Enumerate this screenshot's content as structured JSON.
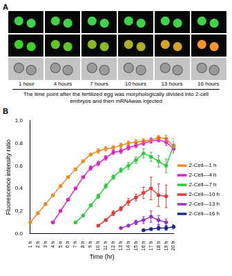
{
  "panel_a": {
    "label": "A",
    "times": [
      "1 hour",
      "4 hours",
      "7 hours",
      "10 hours",
      "13 hours",
      "16 hours"
    ],
    "caption": "The time point after the fertilized egg was morphologically divided into 2-cell embryos and then mRNAwas injected"
  },
  "chart_data": {
    "type": "line",
    "panel_label": "B",
    "x_label": "Time (hr)",
    "y_label": "Fluorescence intensity ratio",
    "categories": [
      "1 h",
      "2 h",
      "3 h",
      "4 h",
      "5 h",
      "6 h",
      "7 h",
      "8 h",
      "9 h",
      "10 h",
      "11 h",
      "12 h",
      "13 h",
      "14 h",
      "15 h",
      "16 h",
      "17 h",
      "18 h",
      "19 h",
      "20 h"
    ],
    "ylim": [
      0,
      1
    ],
    "yticks": [
      {
        "value": 0,
        "label": "0.0"
      },
      0.2,
      0.4,
      0.6,
      0.8,
      {
        "value": 1,
        "label": "1.0"
      }
    ],
    "grid": false,
    "legend": "right",
    "marker": "circle",
    "series": [
      {
        "name": "2-Cell—1 h",
        "color": "#f08a24",
        "values": [
          0.1,
          0.18,
          0.26,
          0.34,
          0.42,
          0.5,
          0.57,
          0.64,
          0.7,
          0.73,
          0.75,
          0.76,
          0.78,
          0.8,
          0.81,
          0.82,
          0.83,
          0.85,
          0.84,
          0.77
        ],
        "errors": [
          0.01,
          0.01,
          0.01,
          0.01,
          0.01,
          0.01,
          0.01,
          0.01,
          0.01,
          0.02,
          0.02,
          0.02,
          0.02,
          0.02,
          0.02,
          0.02,
          0.02,
          0.02,
          0.03,
          0.04
        ]
      },
      {
        "name": "2-Cell—4 h",
        "color": "#e020c8",
        "values": [
          null,
          null,
          null,
          0.1,
          0.2,
          0.3,
          0.4,
          0.5,
          0.58,
          0.62,
          0.67,
          0.72,
          0.73,
          0.76,
          0.78,
          0.8,
          0.82,
          0.83,
          0.81,
          0.75
        ],
        "errors": [
          null,
          null,
          null,
          0.01,
          0.01,
          0.01,
          0.01,
          0.01,
          0.02,
          0.02,
          0.02,
          0.02,
          0.02,
          0.02,
          0.02,
          0.02,
          0.02,
          0.02,
          0.03,
          0.04
        ]
      },
      {
        "name": "2-Cell—7 h",
        "color": "#2ecc40",
        "values": [
          null,
          null,
          null,
          null,
          null,
          null,
          0.1,
          0.16,
          0.25,
          0.33,
          0.42,
          0.5,
          0.56,
          0.6,
          0.65,
          0.71,
          0.68,
          0.64,
          0.6,
          0.78
        ],
        "errors": [
          null,
          null,
          null,
          null,
          null,
          null,
          0.01,
          0.01,
          0.01,
          0.02,
          0.02,
          0.02,
          0.02,
          0.03,
          0.03,
          0.04,
          0.04,
          0.05,
          0.06,
          0.06
        ]
      },
      {
        "name": "2-Cell—10 h",
        "color": "#e03a3a",
        "values": [
          null,
          null,
          null,
          null,
          null,
          null,
          null,
          null,
          null,
          0.07,
          0.12,
          0.18,
          0.22,
          0.28,
          0.32,
          0.36,
          0.4,
          0.34,
          0.33,
          null
        ],
        "errors": [
          null,
          null,
          null,
          null,
          null,
          null,
          null,
          null,
          null,
          0.01,
          0.01,
          0.02,
          0.02,
          0.03,
          0.03,
          0.05,
          0.1,
          0.1,
          0.1,
          null
        ]
      },
      {
        "name": "2-Cell—13 h",
        "color": "#9b30c8",
        "values": [
          null,
          null,
          null,
          null,
          null,
          null,
          null,
          null,
          null,
          null,
          null,
          null,
          0.05,
          0.07,
          0.1,
          0.12,
          0.15,
          0.12,
          0.1,
          null
        ],
        "errors": [
          null,
          null,
          null,
          null,
          null,
          null,
          null,
          null,
          null,
          null,
          null,
          null,
          0.01,
          0.01,
          0.02,
          0.03,
          0.05,
          0.04,
          0.03,
          null
        ]
      },
      {
        "name": "2-Cell—16 h",
        "color": "#1a2a8a",
        "values": [
          null,
          null,
          null,
          null,
          null,
          null,
          null,
          null,
          null,
          null,
          null,
          null,
          null,
          null,
          null,
          0.03,
          0.04,
          0.05,
          0.05,
          0.06
        ],
        "errors": [
          null,
          null,
          null,
          null,
          null,
          null,
          null,
          null,
          null,
          null,
          null,
          null,
          null,
          null,
          null,
          0.01,
          0.01,
          0.02,
          0.02,
          0.02
        ]
      }
    ]
  }
}
